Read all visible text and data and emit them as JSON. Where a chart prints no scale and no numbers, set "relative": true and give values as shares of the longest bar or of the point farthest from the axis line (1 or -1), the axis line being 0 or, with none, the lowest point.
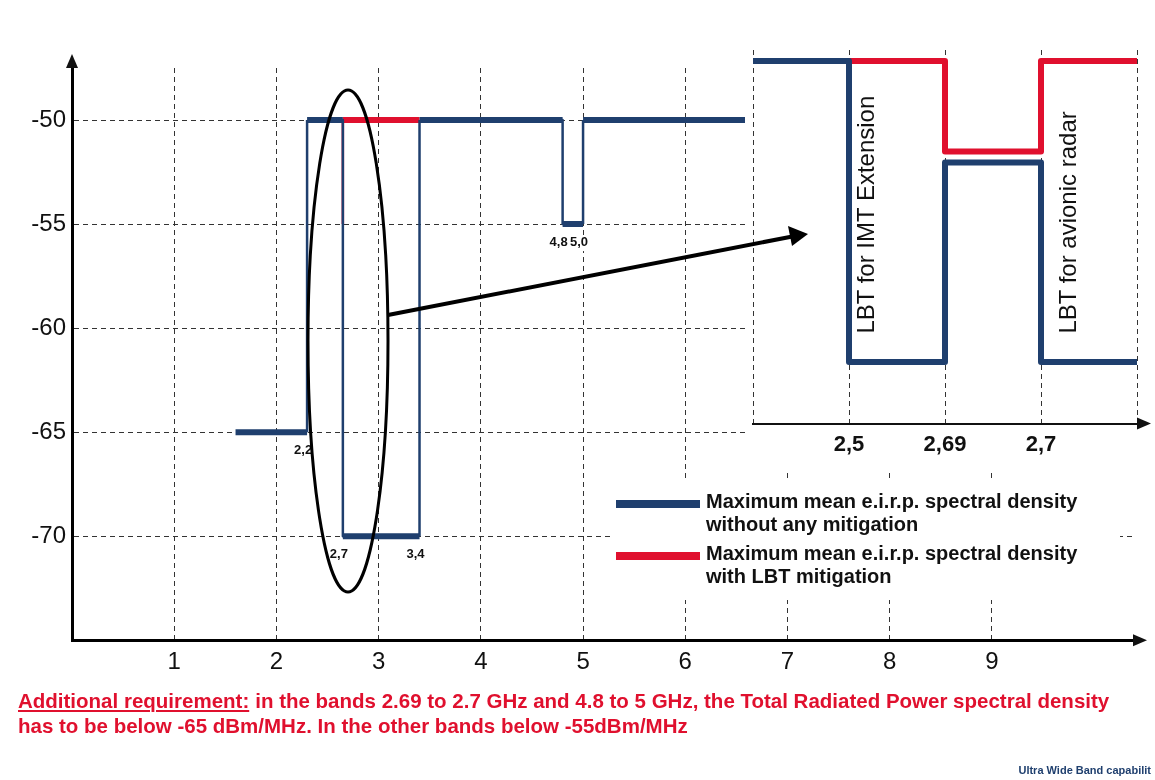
{
  "chart_data": [
    {
      "type": "line",
      "xlim": [
        0,
        10.4
      ],
      "xticks": [
        1,
        2,
        3,
        4,
        5,
        6,
        7,
        8,
        9
      ],
      "ylim": [
        -75,
        -47.5
      ],
      "yticks": [
        -50,
        -55,
        -60,
        -65,
        -70
      ],
      "grid": true,
      "legend": "bottom right",
      "marker": "none",
      "line_style": "solid",
      "series": [
        {
          "name": "Maximum mean e.i.r.p. spectral density without any mitigation",
          "color": "#1f3f6e",
          "x": [
            1.6,
            2.3,
            2.3,
            2.65,
            2.65,
            3.4,
            3.4,
            4.8,
            4.8,
            5.0,
            5.0,
            6.6
          ],
          "values": [
            -65,
            -65,
            -50,
            -50,
            -70,
            -70,
            -50,
            -50,
            -55,
            -55,
            -50,
            -50
          ]
        },
        {
          "name": "Maximum mean e.i.r.p. spectral density with LBT mitigation",
          "color": "#e0102e",
          "x": [
            2.65,
            2.65,
            3.4
          ],
          "values": [
            -55,
            -50,
            -50
          ]
        }
      ],
      "annotations": [
        {
          "text": "2,2",
          "x": 2.3,
          "y": -65
        },
        {
          "text": "2,7",
          "x": 2.65,
          "y": -70
        },
        {
          "text": "3,4",
          "x": 3.4,
          "y": -70
        },
        {
          "text": "4,8",
          "x": 4.8,
          "y": -55
        },
        {
          "text": "5,0",
          "x": 5.0,
          "y": -55
        },
        "Additional requirement:",
        "in the bands 2.69 to 2.7 GHz and 4.8 to  5 GHz, the Total Radiated Power spectral density has to be below -65 dBm/MHz. In the other bands below -55dBm/MHz",
        "Ultra Wide Band capabilit"
      ]
    },
    {
      "type": "step",
      "relative": true,
      "categories": [
        null,
        "2,5",
        "2,69",
        "2,7",
        null
      ],
      "grid": "x",
      "legend": false,
      "series": [
        {
          "color": "#1f3f6e",
          "values": [
            1,
            0.17,
            0.72,
            0.17,
            0.17
          ]
        },
        {
          "color": "#e0102e",
          "values": [
            null,
            1,
            0.75,
            1,
            1
          ]
        }
      ],
      "annotations": [
        "LBT for IMT Extension",
        "LBT for avionic radar"
      ]
    }
  ]
}
